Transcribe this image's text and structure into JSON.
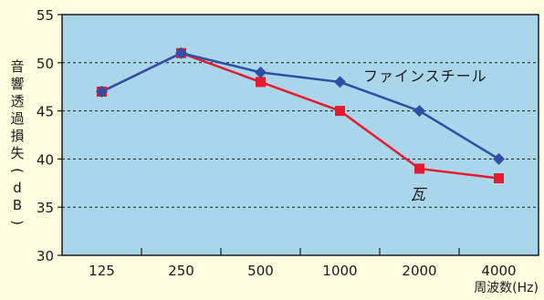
{
  "chart_data": {
    "type": "line",
    "categories": [
      "125",
      "250",
      "500",
      "1000",
      "2000",
      "4000"
    ],
    "series": [
      {
        "name": "ファインスチール",
        "values": [
          47,
          51,
          49,
          48,
          45,
          40
        ],
        "color": "#2e4fa3",
        "marker": "diamond"
      },
      {
        "name": "瓦",
        "values": [
          47,
          51,
          48,
          45,
          39,
          38
        ],
        "color": "#e8192c",
        "marker": "square"
      }
    ],
    "ylim": [
      30,
      55
    ],
    "yticks": [
      30,
      35,
      40,
      45,
      50,
      55
    ],
    "ylabel": "音響透過損失(dB)",
    "xlabel": "周波数(Hz)",
    "grid": "horizontal dashed",
    "plot_background": "#a9d6ea",
    "page_background": "#fffde0"
  }
}
